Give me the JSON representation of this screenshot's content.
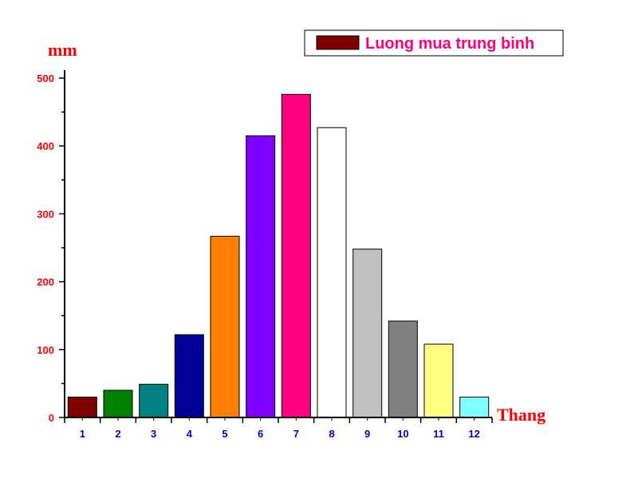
{
  "chart_data": {
    "type": "bar",
    "title": "",
    "xlabel": "Thang",
    "ylabel": "mm",
    "ylim": [
      0,
      500
    ],
    "yticks": [
      0,
      100,
      200,
      300,
      400,
      500
    ],
    "categories": [
      "1",
      "2",
      "3",
      "4",
      "5",
      "6",
      "7",
      "8",
      "9",
      "10",
      "11",
      "12"
    ],
    "series": [
      {
        "name": "Luong mua trung binh",
        "values": [
          30,
          40,
          49,
          122,
          267,
          415,
          476,
          427,
          248,
          142,
          108,
          30
        ]
      }
    ],
    "bar_colors": [
      "#800000",
      "#008000",
      "#008080",
      "#000099",
      "#ff8000",
      "#8000ff",
      "#ff0080",
      "#ffffff",
      "#c0c0c0",
      "#808080",
      "#ffff80",
      "#80ffff"
    ],
    "legend": {
      "label": "Luong mua trung binh",
      "swatch_color": "#800000",
      "placement": "top-right"
    }
  }
}
